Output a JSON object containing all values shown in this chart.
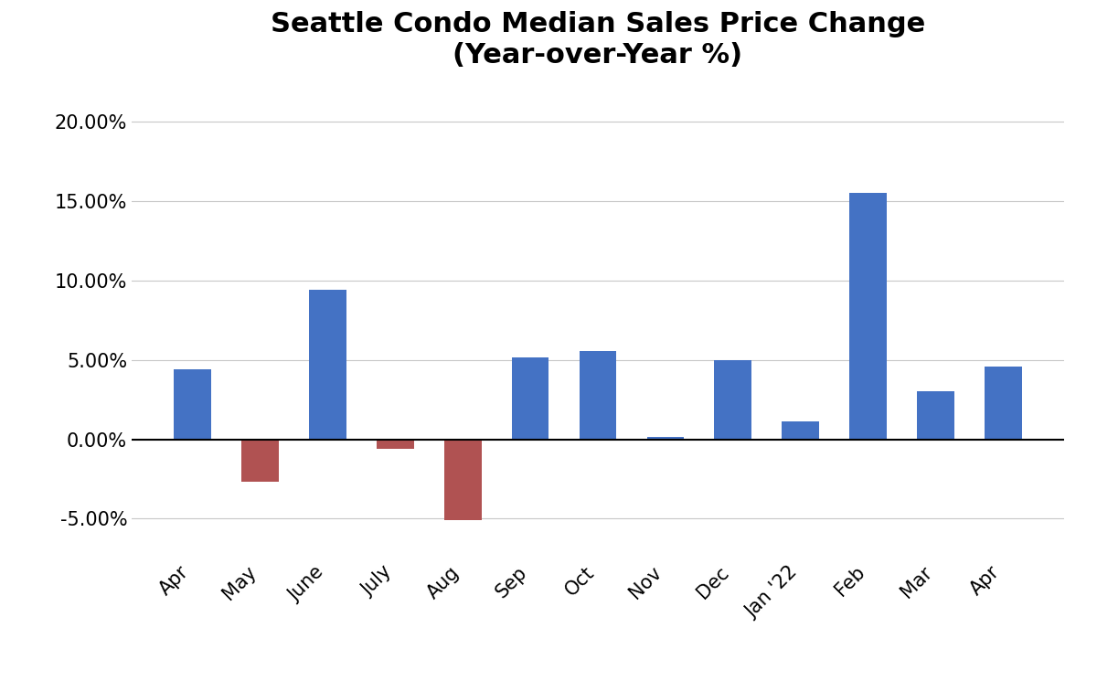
{
  "categories": [
    "Apr",
    "May",
    "June",
    "July",
    "Aug",
    "Sep",
    "Oct",
    "Nov",
    "Dec",
    "Jan '22",
    "Feb",
    "Mar",
    "Apr"
  ],
  "values": [
    4.4,
    -2.7,
    9.4,
    -0.6,
    -5.1,
    5.15,
    5.55,
    0.15,
    5.0,
    1.1,
    15.5,
    3.0,
    4.6
  ],
  "positive_color": "#4472C4",
  "negative_color": "#B05252",
  "title_line1": "Seattle Condo Median Sales Price Change",
  "title_line2": "(Year-over-Year %)",
  "ylim": [
    -7.5,
    22.5
  ],
  "yticks": [
    -5.0,
    0.0,
    5.0,
    10.0,
    15.0,
    20.0
  ],
  "title_fontsize": 22,
  "tick_fontsize": 15,
  "background_color": "#ffffff",
  "grid_color": "#c8c8c8"
}
